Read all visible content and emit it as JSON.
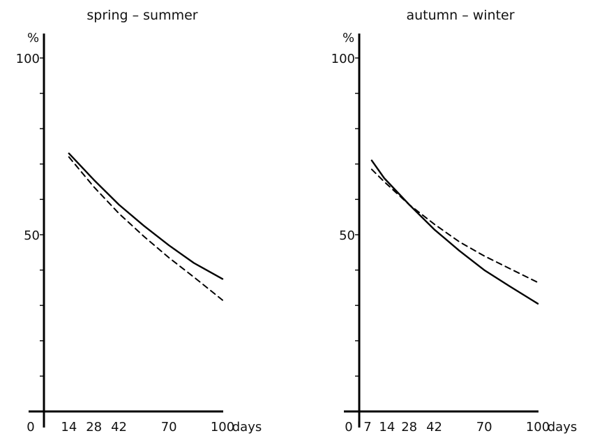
{
  "chart_data": [
    {
      "type": "line",
      "title": "spring – summer",
      "ylabel": "%",
      "xlabel": "days",
      "xlim": [
        0,
        100
      ],
      "ylim": [
        0,
        100
      ],
      "xticks": [
        0,
        14,
        28,
        42,
        70,
        100
      ],
      "yticks": [
        50,
        100
      ],
      "grid": false,
      "series": [
        {
          "style": "solid",
          "x": [
            14,
            28,
            42,
            56,
            70,
            84,
            100
          ],
          "y": [
            73,
            65.5,
            58.5,
            52.5,
            47,
            42,
            37.5
          ]
        },
        {
          "style": "dashed",
          "x": [
            14,
            28,
            42,
            56,
            70,
            84,
            100
          ],
          "y": [
            72,
            63.5,
            56,
            49.5,
            43.5,
            38,
            31.5
          ]
        }
      ]
    },
    {
      "type": "line",
      "title": "autumn – winter",
      "ylabel": "%",
      "xlabel": "days",
      "xlim": [
        0,
        100
      ],
      "ylim": [
        0,
        100
      ],
      "xticks": [
        0,
        7,
        14,
        28,
        42,
        70,
        100
      ],
      "xtick_labels": [
        "0",
        "7",
        "14",
        "28",
        "42",
        "70",
        "100"
      ],
      "yticks": [
        50,
        100
      ],
      "grid": false,
      "series": [
        {
          "style": "solid",
          "x": [
            7,
            14,
            28,
            42,
            56,
            70,
            84,
            100
          ],
          "y": [
            71,
            66,
            58.5,
            51.5,
            45.5,
            40,
            35.5,
            30.5
          ]
        },
        {
          "style": "dashed",
          "x": [
            7,
            14,
            28,
            42,
            56,
            70,
            84,
            100
          ],
          "y": [
            68.5,
            65,
            58.5,
            53,
            48,
            44,
            40.5,
            36.5
          ]
        }
      ]
    }
  ]
}
